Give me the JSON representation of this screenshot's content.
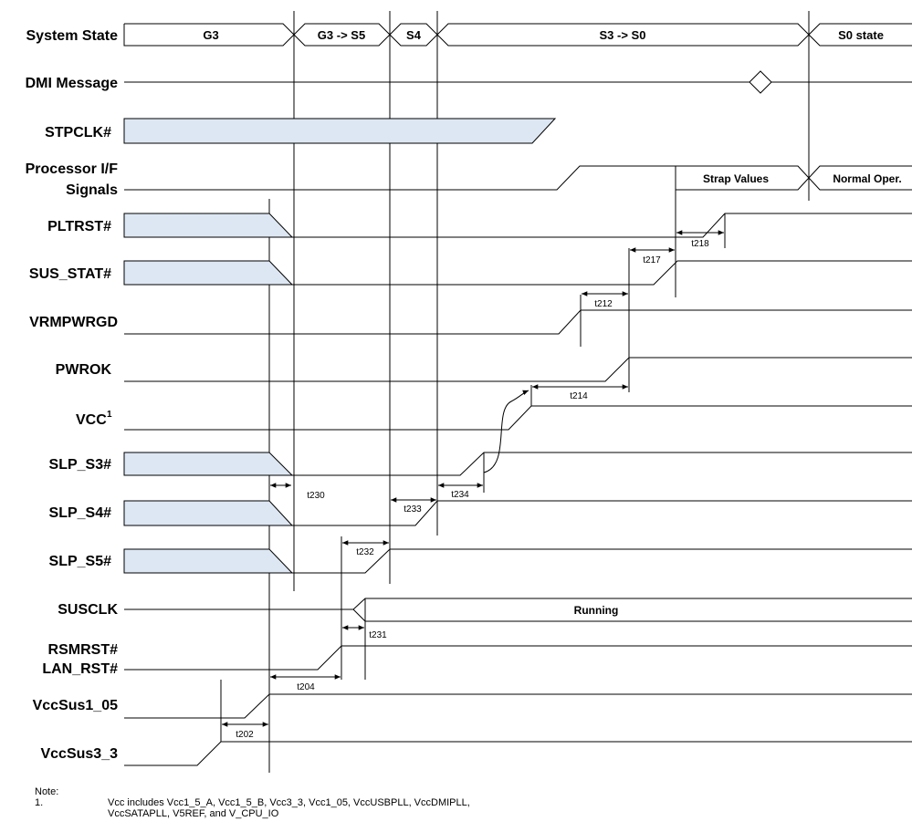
{
  "signals": {
    "system_state": "System State",
    "dmi_message": "DMI Message",
    "stpclk": "STPCLK#",
    "proc_if_1": "Processor I/F",
    "proc_if_2": "Signals",
    "pltrst": "PLTRST#",
    "sus_stat": "SUS_STAT#",
    "vrmpwrgd": "VRMPWRGD",
    "pwrok": "PWROK",
    "vcc": "VCC",
    "vcc_sup": "1",
    "slp_s3": "SLP_S3#",
    "slp_s4": "SLP_S4#",
    "slp_s5": "SLP_S5#",
    "susclk": "SUSCLK",
    "rsmrst_1": "RSMRST#",
    "rsmrst_2": "LAN_RST#",
    "vccsus1_05": "VccSus1_05",
    "vccsus3_3": "VccSus3_3"
  },
  "states": {
    "g3": "G3",
    "g3_s5": "G3 -> S5",
    "s4": "S4",
    "s3_s0": "S3 -> S0",
    "s0": "S0 state"
  },
  "boxes": {
    "strap": "Strap Values",
    "normal": "Normal Oper.",
    "running": "Running"
  },
  "timings": {
    "t218": "t218",
    "t217": "t217",
    "t212": "t212",
    "t214": "t214",
    "t230": "t230",
    "t233": "t233",
    "t234": "t234",
    "t232": "t232",
    "t231": "t231",
    "t204": "t204",
    "t202": "t202"
  },
  "note": {
    "header": "Note:",
    "number": "1.",
    "line1": "Vcc includes Vcc1_5_A, Vcc1_5_B, Vcc3_3, Vcc1_05, VccUSBPLL, VccDMIPLL,",
    "line2": "VccSATAPLL, V5REF, and V_CPU_IO"
  },
  "colors": {
    "shade": "#dde7f3",
    "line": "#000000"
  }
}
